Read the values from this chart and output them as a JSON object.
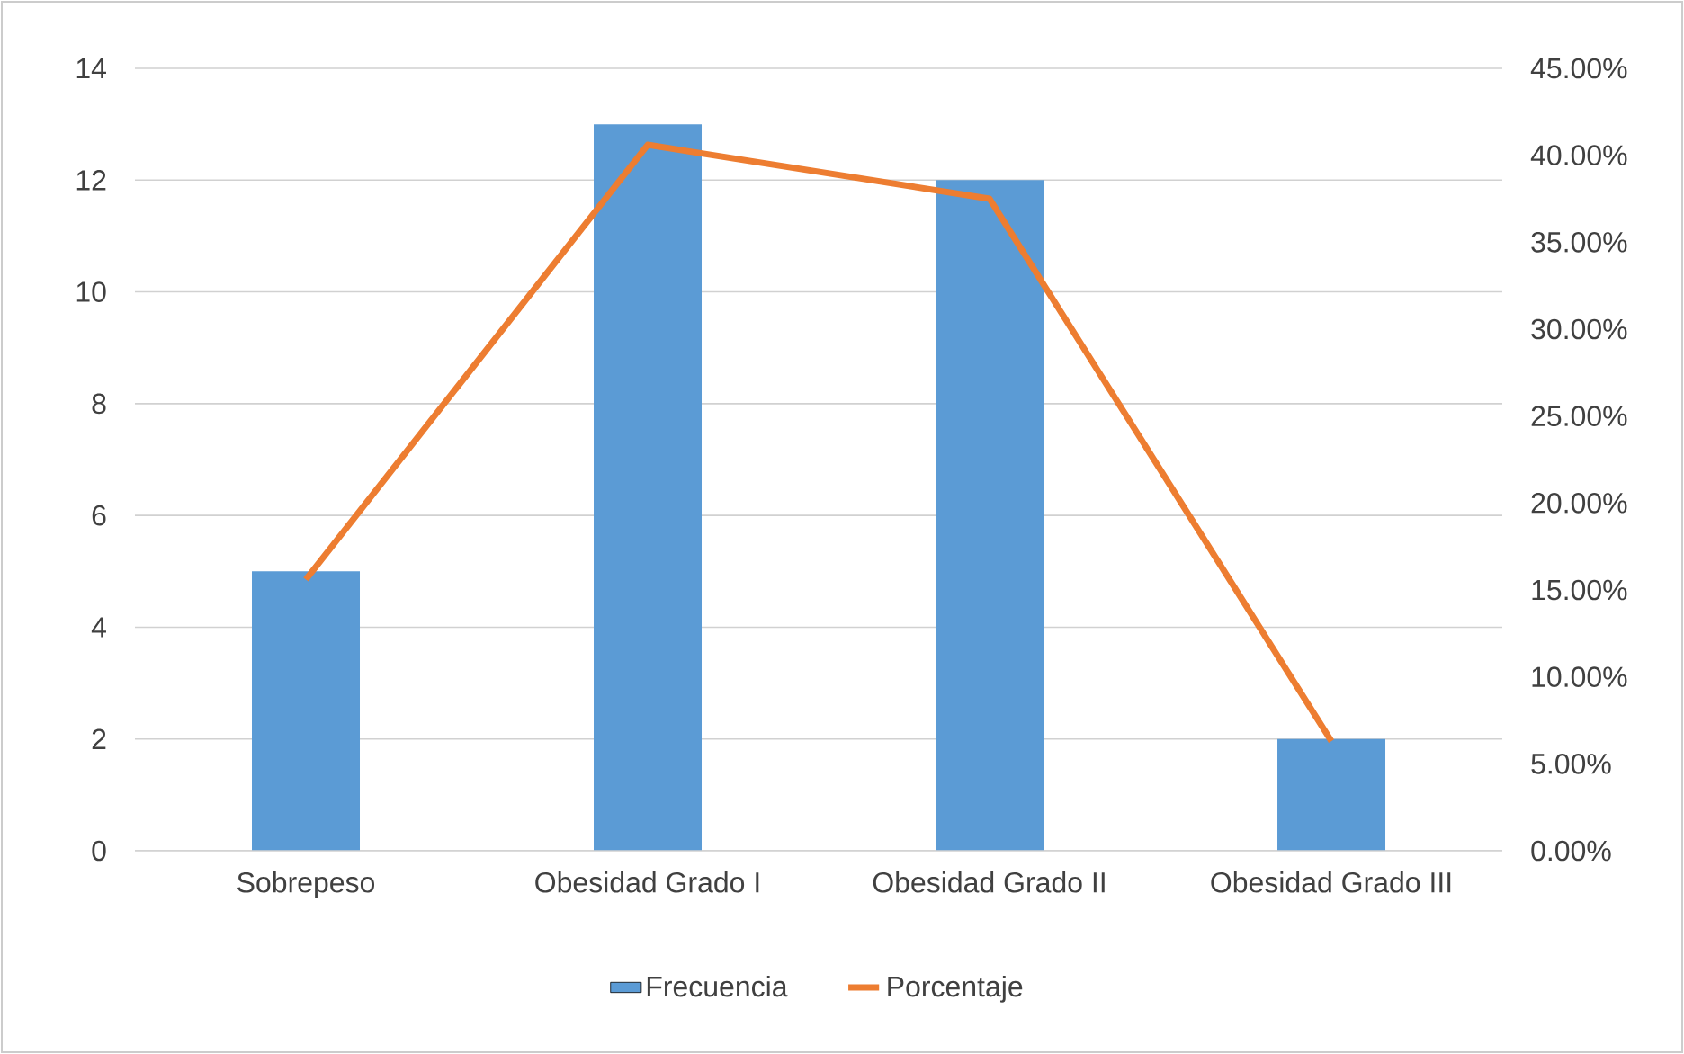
{
  "chart_data": {
    "type": "bar",
    "categories": [
      "Sobrepeso",
      "Obesidad Grado I",
      "Obesidad Grado II",
      "Obesidad Grado III"
    ],
    "series": [
      {
        "name": "Frecuencia",
        "color": "#5b9bd5",
        "values": [
          5,
          13,
          12,
          2
        ]
      },
      {
        "name": "Porcentaje",
        "type": "line",
        "axis": "y2",
        "color": "#ed7d31",
        "values": [
          15.6,
          40.6,
          37.5,
          6.3
        ]
      }
    ],
    "ylim": [
      0,
      14
    ],
    "yticks": [
      0,
      2,
      4,
      6,
      8,
      10,
      12,
      14
    ],
    "y2lim": [
      0,
      45
    ],
    "y2ticks": [
      {
        "value": 0,
        "label": "0.00%"
      },
      {
        "value": 5,
        "label": "5.00%"
      },
      {
        "value": 10,
        "label": "10.00%"
      },
      {
        "value": 15,
        "label": "15.00%"
      },
      {
        "value": 20,
        "label": "20.00%"
      },
      {
        "value": 25,
        "label": "25.00%"
      },
      {
        "value": 30,
        "label": "30.00%"
      },
      {
        "value": 35,
        "label": "35.00%"
      },
      {
        "value": 40,
        "label": "40.00%"
      },
      {
        "value": 45,
        "label": "45.00%"
      }
    ],
    "grid": "y",
    "legend": "bottom",
    "marker": "none",
    "line_style": "solid"
  }
}
